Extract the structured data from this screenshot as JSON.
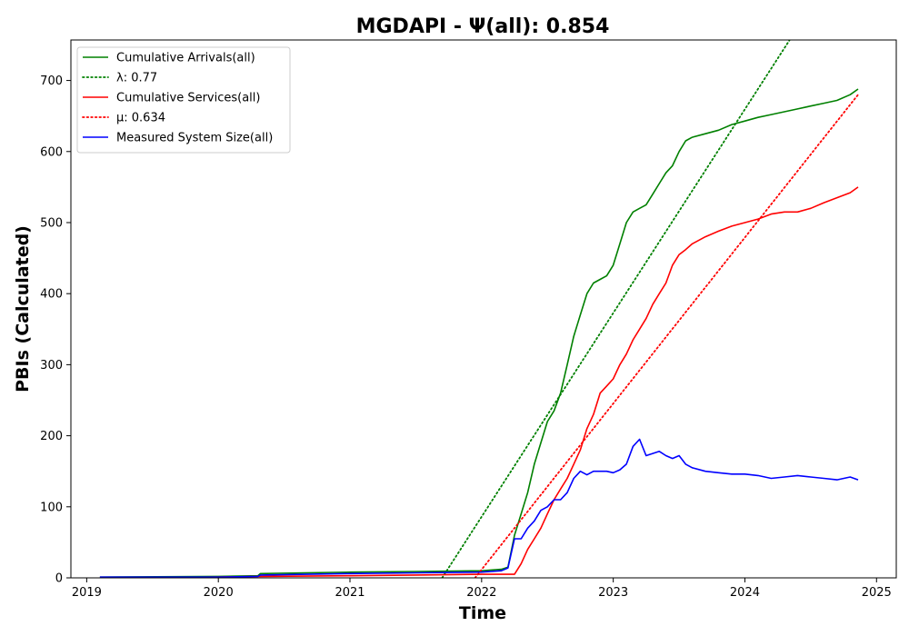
{
  "chart_data": {
    "type": "line",
    "title": "MGDAPI -  Ψ(all): 0.854",
    "xlabel": "Time",
    "ylabel": "PBIs (Calculated)",
    "xlim": [
      2018.88,
      2025.15
    ],
    "ylim": [
      0,
      757
    ],
    "x_ticks": [
      "2019",
      "2020",
      "2021",
      "2022",
      "2023",
      "2024",
      "2025"
    ],
    "x_tick_values": [
      2019,
      2020,
      2021,
      2022,
      2023,
      2024,
      2025
    ],
    "y_ticks": [
      "0",
      "100",
      "200",
      "300",
      "400",
      "500",
      "600",
      "700"
    ],
    "y_tick_values": [
      0,
      100,
      200,
      300,
      400,
      500,
      600,
      700
    ],
    "grid": false,
    "legend_position": "top-left",
    "series": [
      {
        "name": "Cumulative Arrivals(all)",
        "color": "#008000",
        "style": "solid",
        "x": [
          2019.1,
          2020.0,
          2020.3,
          2020.32,
          2021.0,
          2021.5,
          2022.0,
          2022.15,
          2022.2,
          2022.25,
          2022.3,
          2022.35,
          2022.4,
          2022.45,
          2022.5,
          2022.55,
          2022.6,
          2022.65,
          2022.7,
          2022.75,
          2022.8,
          2022.85,
          2022.9,
          2022.95,
          2023.0,
          2023.05,
          2023.1,
          2023.15,
          2023.2,
          2023.25,
          2023.3,
          2023.35,
          2023.4,
          2023.45,
          2023.5,
          2023.55,
          2023.6,
          2023.7,
          2023.8,
          2023.9,
          2024.0,
          2024.1,
          2024.2,
          2024.3,
          2024.4,
          2024.5,
          2024.6,
          2024.7,
          2024.8,
          2024.86
        ],
        "y": [
          1,
          2,
          3,
          6,
          8,
          9,
          10,
          12,
          15,
          60,
          90,
          120,
          160,
          190,
          220,
          235,
          260,
          300,
          340,
          370,
          400,
          415,
          420,
          425,
          440,
          470,
          500,
          515,
          520,
          525,
          540,
          555,
          570,
          580,
          600,
          615,
          620,
          625,
          630,
          638,
          643,
          648,
          652,
          656,
          660,
          664,
          668,
          672,
          680,
          688
        ]
      },
      {
        "name": "λ: 0.77",
        "color": "#008000",
        "style": "dotted",
        "x": [
          2021.7,
          2024.34
        ],
        "y": [
          0,
          757
        ]
      },
      {
        "name": "Cumulative Services(all)",
        "color": "#ff0000",
        "style": "solid",
        "x": [
          2019.1,
          2020.0,
          2020.32,
          2021.0,
          2021.5,
          2022.0,
          2022.1,
          2022.25,
          2022.3,
          2022.35,
          2022.4,
          2022.45,
          2022.5,
          2022.55,
          2022.6,
          2022.65,
          2022.7,
          2022.75,
          2022.8,
          2022.85,
          2022.9,
          2022.95,
          2023.0,
          2023.05,
          2023.1,
          2023.15,
          2023.2,
          2023.25,
          2023.3,
          2023.35,
          2023.4,
          2023.45,
          2023.5,
          2023.55,
          2023.6,
          2023.7,
          2023.8,
          2023.9,
          2024.0,
          2024.1,
          2024.2,
          2024.3,
          2024.4,
          2024.5,
          2024.6,
          2024.7,
          2024.8,
          2024.86
        ],
        "y": [
          0,
          1,
          2,
          3,
          4,
          5,
          5,
          5,
          20,
          40,
          55,
          70,
          90,
          110,
          125,
          140,
          160,
          180,
          210,
          230,
          260,
          270,
          280,
          300,
          315,
          335,
          350,
          365,
          385,
          400,
          415,
          440,
          455,
          462,
          470,
          480,
          488,
          495,
          500,
          505,
          512,
          515,
          515,
          520,
          528,
          535,
          542,
          550
        ]
      },
      {
        "name": "μ: 0.634",
        "color": "#ff0000",
        "style": "dotted",
        "x": [
          2021.95,
          2024.86
        ],
        "y": [
          0,
          680
        ]
      },
      {
        "name": "Measured System Size(all)",
        "color": "#0000ff",
        "style": "solid",
        "x": [
          2019.1,
          2020.0,
          2020.3,
          2020.32,
          2021.0,
          2021.5,
          2022.0,
          2022.15,
          2022.2,
          2022.25,
          2022.3,
          2022.35,
          2022.4,
          2022.45,
          2022.5,
          2022.55,
          2022.6,
          2022.65,
          2022.7,
          2022.75,
          2022.8,
          2022.85,
          2022.9,
          2022.95,
          2023.0,
          2023.05,
          2023.1,
          2023.15,
          2023.2,
          2023.25,
          2023.3,
          2023.35,
          2023.4,
          2023.45,
          2023.5,
          2023.55,
          2023.6,
          2023.7,
          2023.8,
          2023.9,
          2024.0,
          2024.1,
          2024.2,
          2024.3,
          2024.4,
          2024.5,
          2024.6,
          2024.7,
          2024.8,
          2024.86
        ],
        "y": [
          1,
          1,
          2,
          4,
          6,
          7,
          8,
          10,
          14,
          55,
          55,
          70,
          80,
          95,
          100,
          110,
          110,
          120,
          140,
          150,
          145,
          150,
          150,
          150,
          148,
          152,
          160,
          185,
          195,
          172,
          175,
          178,
          172,
          168,
          172,
          160,
          155,
          150,
          148,
          146,
          146,
          144,
          140,
          142,
          144,
          142,
          140,
          138,
          142,
          138
        ]
      }
    ]
  }
}
